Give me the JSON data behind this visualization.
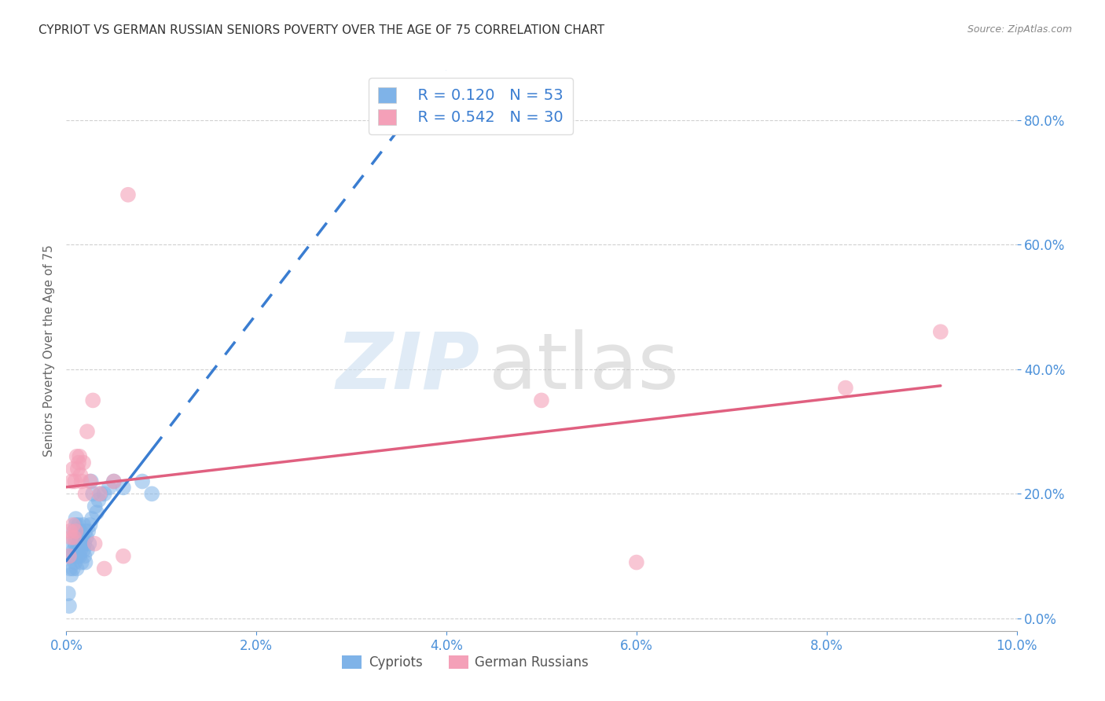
{
  "title": "CYPRIOT VS GERMAN RUSSIAN SENIORS POVERTY OVER THE AGE OF 75 CORRELATION CHART",
  "source": "Source: ZipAtlas.com",
  "xlabel": "",
  "ylabel": "Seniors Poverty Over the Age of 75",
  "xlim": [
    0.0,
    0.1
  ],
  "ylim": [
    -0.02,
    0.88
  ],
  "xticks": [
    0.0,
    0.02,
    0.04,
    0.06,
    0.08,
    0.1
  ],
  "yticks": [
    0.0,
    0.2,
    0.4,
    0.6,
    0.8
  ],
  "cypriot_color": "#7fb3e8",
  "german_russian_color": "#f4a0b8",
  "cypriot_R": 0.12,
  "cypriot_N": 53,
  "german_russian_R": 0.542,
  "german_russian_N": 30,
  "legend_label_1": "Cypriots",
  "legend_label_2": "German Russians",
  "watermark_zip": "ZIP",
  "watermark_atlas": "atlas",
  "background_color": "#ffffff",
  "grid_color": "#cccccc",
  "cypriot_points_x": [
    0.0002,
    0.0003,
    0.0004,
    0.0004,
    0.0005,
    0.0005,
    0.0006,
    0.0007,
    0.0008,
    0.0008,
    0.0009,
    0.0009,
    0.001,
    0.001,
    0.001,
    0.001,
    0.0011,
    0.0011,
    0.0012,
    0.0012,
    0.0013,
    0.0013,
    0.0014,
    0.0014,
    0.0015,
    0.0015,
    0.0016,
    0.0016,
    0.0017,
    0.0018,
    0.0018,
    0.0019,
    0.0019,
    0.002,
    0.002,
    0.0021,
    0.0022,
    0.0023,
    0.0024,
    0.0025,
    0.0026,
    0.0027,
    0.0028,
    0.003,
    0.0032,
    0.0034,
    0.0036,
    0.004,
    0.0045,
    0.005,
    0.006,
    0.008,
    0.009
  ],
  "cypriot_points_y": [
    0.04,
    0.02,
    0.08,
    0.1,
    0.07,
    0.12,
    0.1,
    0.08,
    0.11,
    0.14,
    0.09,
    0.12,
    0.1,
    0.13,
    0.15,
    0.16,
    0.08,
    0.11,
    0.1,
    0.14,
    0.12,
    0.15,
    0.1,
    0.13,
    0.11,
    0.14,
    0.12,
    0.09,
    0.13,
    0.11,
    0.15,
    0.1,
    0.12,
    0.14,
    0.09,
    0.13,
    0.11,
    0.14,
    0.12,
    0.15,
    0.22,
    0.16,
    0.2,
    0.18,
    0.17,
    0.19,
    0.2,
    0.2,
    0.21,
    0.22,
    0.21,
    0.22,
    0.2
  ],
  "german_russian_points_x": [
    0.0003,
    0.0004,
    0.0005,
    0.0006,
    0.0007,
    0.0007,
    0.0008,
    0.0009,
    0.001,
    0.0011,
    0.0012,
    0.0013,
    0.0014,
    0.0015,
    0.0016,
    0.0018,
    0.002,
    0.0022,
    0.0025,
    0.0028,
    0.003,
    0.0035,
    0.004,
    0.005,
    0.006,
    0.0065,
    0.05,
    0.06,
    0.082,
    0.092
  ],
  "german_russian_points_y": [
    0.1,
    0.14,
    0.13,
    0.22,
    0.24,
    0.15,
    0.13,
    0.22,
    0.14,
    0.26,
    0.24,
    0.25,
    0.26,
    0.23,
    0.22,
    0.25,
    0.2,
    0.3,
    0.22,
    0.35,
    0.12,
    0.2,
    0.08,
    0.22,
    0.1,
    0.68,
    0.35,
    0.09,
    0.37,
    0.46
  ]
}
